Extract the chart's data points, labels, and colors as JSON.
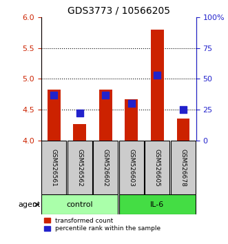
{
  "title": "GDS3773 / 10566205",
  "samples": [
    "GSM526561",
    "GSM526562",
    "GSM526602",
    "GSM526603",
    "GSM526605",
    "GSM526678"
  ],
  "groups": [
    "control",
    "control",
    "control",
    "IL-6",
    "IL-6",
    "IL-6"
  ],
  "red_values": [
    4.82,
    4.27,
    4.82,
    4.67,
    5.8,
    4.35
  ],
  "blue_values_pct": [
    37,
    22,
    37,
    30,
    53,
    25
  ],
  "ylim_left": [
    4.0,
    6.0
  ],
  "ylim_right": [
    0,
    100
  ],
  "yticks_left": [
    4.0,
    4.5,
    5.0,
    5.5,
    6.0
  ],
  "yticks_right": [
    0,
    25,
    50,
    75,
    100
  ],
  "ytick_labels_right": [
    "0",
    "25",
    "50",
    "75",
    "100%"
  ],
  "hlines": [
    4.5,
    5.0,
    5.5
  ],
  "bar_bottom": 4.0,
  "bar_width": 0.5,
  "red_color": "#cc2200",
  "blue_color": "#2222cc",
  "control_color": "#aaffaa",
  "il6_color": "#44dd44",
  "label_box_color": "#cccccc",
  "legend_red": "transformed count",
  "legend_blue": "percentile rank within the sample",
  "agent_label": "agent",
  "group_labels": [
    "control",
    "IL-6"
  ],
  "group_ranges": [
    [
      0,
      2
    ],
    [
      3,
      5
    ]
  ],
  "blue_square_size": 60
}
